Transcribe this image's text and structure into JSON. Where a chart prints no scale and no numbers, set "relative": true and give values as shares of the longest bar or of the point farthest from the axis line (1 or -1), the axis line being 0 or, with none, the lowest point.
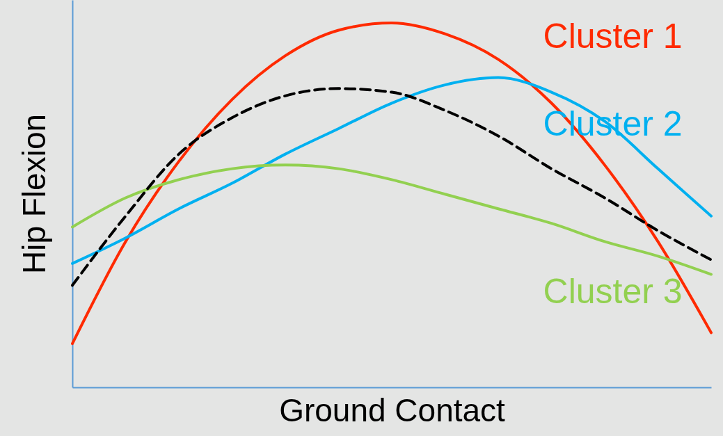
{
  "chart_data": {
    "type": "line",
    "xlabel": "Ground Contact",
    "ylabel": "Hip Flexion",
    "relative": true,
    "categories": [
      null,
      null,
      null,
      null,
      null,
      null,
      null,
      null,
      null,
      null,
      null,
      null,
      null
    ],
    "grid": false,
    "marker": "none",
    "series": [
      {
        "name": "Cluster 1",
        "color": "#ff2a00",
        "values": [
          0.12,
          0.4,
          0.62,
          0.79,
          0.91,
          0.98,
          1.0,
          0.97,
          0.9,
          0.78,
          0.61,
          0.4,
          0.15
        ]
      },
      {
        "name": "Cluster 2",
        "color": "#00b0f0",
        "values": [
          0.34,
          0.41,
          0.49,
          0.56,
          0.64,
          0.71,
          0.78,
          0.83,
          0.85,
          0.81,
          0.73,
          0.6,
          0.47
        ]
      },
      {
        "name": "Cluster 3",
        "color": "#92d050",
        "values": [
          0.44,
          0.52,
          0.57,
          0.6,
          0.61,
          0.6,
          0.57,
          0.53,
          0.49,
          0.45,
          0.4,
          0.36,
          0.31
        ]
      },
      {
        "color": "#000000",
        "line_style": "dashed",
        "values": [
          0.28,
          0.47,
          0.64,
          0.74,
          0.8,
          0.82,
          0.81,
          0.76,
          0.69,
          0.6,
          0.52,
          0.43,
          0.35
        ]
      }
    ]
  }
}
